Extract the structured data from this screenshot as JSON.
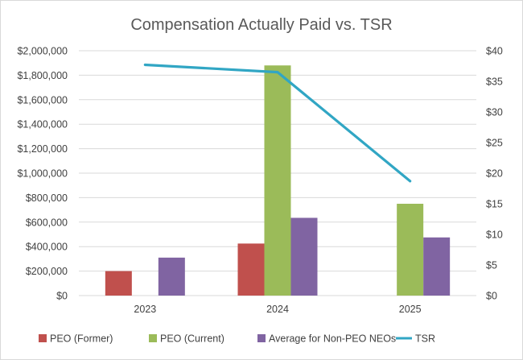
{
  "chart_data": {
    "type": "bar",
    "title": "Compensation Actually Paid vs. TSR",
    "categories": [
      "2023",
      "2024",
      "2025"
    ],
    "series": [
      {
        "name": "PEO (Former)",
        "kind": "bar",
        "axis": "left",
        "color": "#c0504d",
        "values": [
          200000,
          425000,
          null
        ]
      },
      {
        "name": "PEO (Current)",
        "kind": "bar",
        "axis": "left",
        "color": "#9bbb59",
        "values": [
          null,
          1880000,
          750000
        ]
      },
      {
        "name": "Average for Non-PEO NEOs",
        "kind": "bar",
        "axis": "left",
        "color": "#8064a2",
        "values": [
          310000,
          635000,
          475000
        ]
      },
      {
        "name": "TSR",
        "kind": "line",
        "axis": "right",
        "color": "#31a6c4",
        "values": [
          37.7,
          36.5,
          18.7
        ]
      }
    ],
    "y_left": {
      "ylim": [
        0,
        2000000
      ],
      "ticks": [
        "$0",
        "$200,000",
        "$400,000",
        "$600,000",
        "$800,000",
        "$1,000,000",
        "$1,200,000",
        "$1,400,000",
        "$1,600,000",
        "$1,800,000",
        "$2,000,000"
      ]
    },
    "y_right": {
      "ylim": [
        0,
        40
      ],
      "ticks": [
        "$0",
        "$5",
        "$10",
        "$15",
        "$20",
        "$25",
        "$30",
        "$35",
        "$40"
      ]
    },
    "grid": true,
    "legend": "bottom",
    "xlabel": "",
    "ylabel": ""
  }
}
